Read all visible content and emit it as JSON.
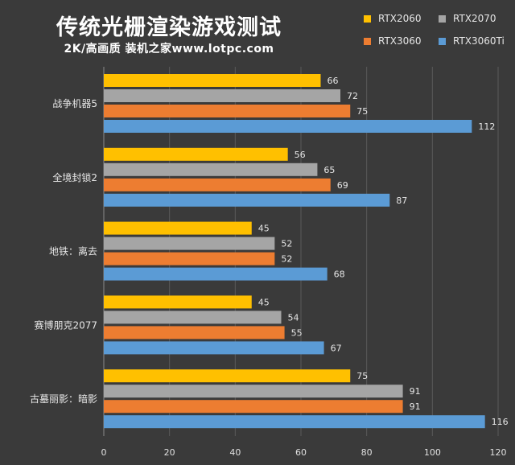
{
  "chart_data": {
    "type": "bar",
    "orientation": "horizontal",
    "title": "传统光栅渲染游戏测试",
    "subtitle": "2K/高画质 装机之家www.lotpc.com",
    "categories": [
      "战争机器5",
      "全境封锁2",
      "地铁：离去",
      "赛博朋克2077",
      "古墓丽影：暗影"
    ],
    "series": [
      {
        "name": "RTX2060",
        "color": "#ffc000",
        "values": [
          66,
          56,
          45,
          45,
          75
        ]
      },
      {
        "name": "RTX2070",
        "color": "#a5a5a5",
        "values": [
          72,
          65,
          52,
          54,
          91
        ]
      },
      {
        "name": "RTX3060",
        "color": "#ed7d31",
        "values": [
          75,
          69,
          52,
          55,
          91
        ]
      },
      {
        "name": "RTX3060Ti",
        "color": "#5b9bd5",
        "values": [
          112,
          87,
          68,
          67,
          116
        ]
      }
    ],
    "xlim": [
      0,
      120
    ],
    "xticks": [
      0,
      20,
      40,
      60,
      80,
      100,
      120
    ],
    "grid": true,
    "legend_position": "top-right"
  }
}
